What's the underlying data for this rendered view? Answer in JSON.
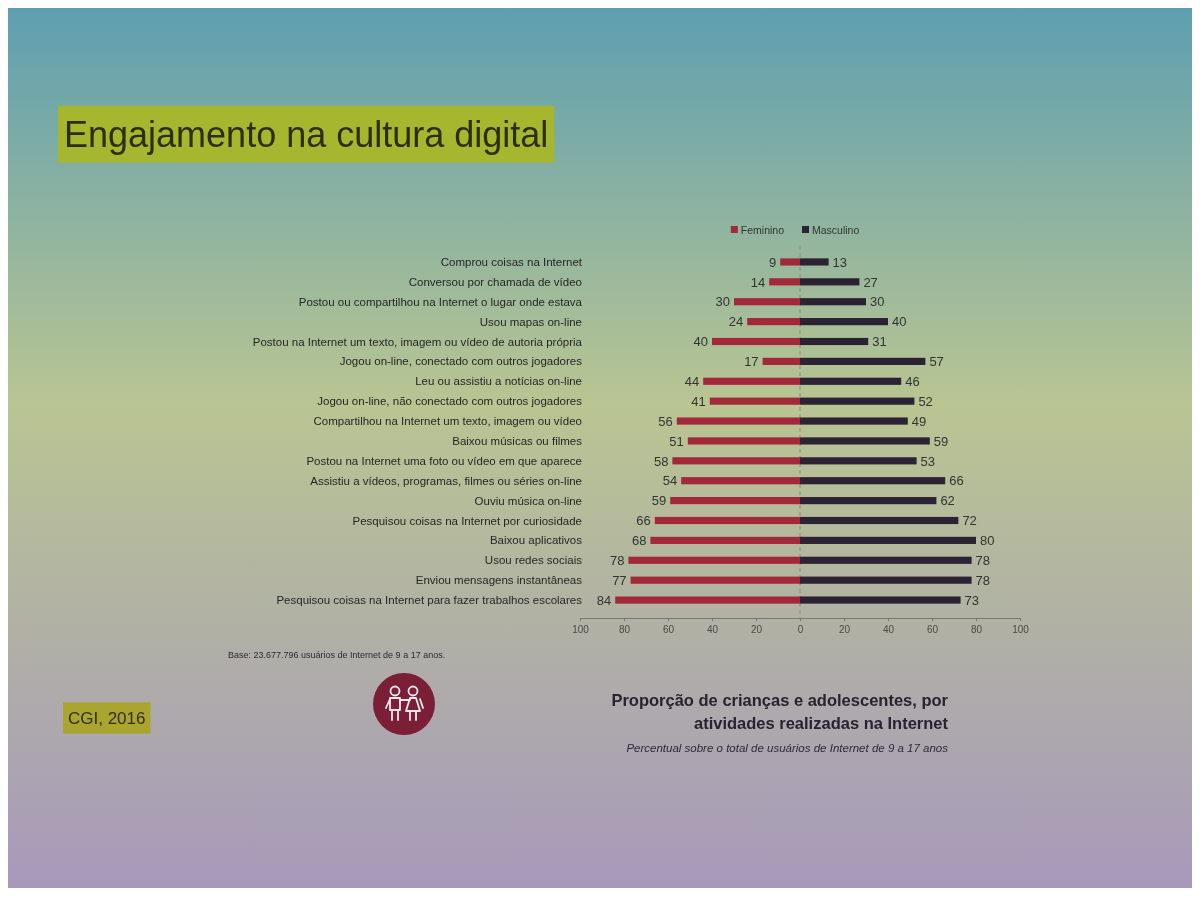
{
  "chart_data": [
    {
      "type": "bar",
      "orientation": "horizontal",
      "title": "Engajamento na cultura digital",
      "subtitle": "Proporção de crianças e adolescentes, por atividades realizadas na Internet",
      "annotations": [
        "Percentual sobre o total de usuários de Internet de 9 a 17 anos",
        "Base: 23.677.796 usuários de Internet de 9 a 17 anos.",
        "CGI, 2016"
      ],
      "categories": [
        "Comprou coisas na Internet",
        "Conversou por chamada de vídeo",
        "Postou ou compartilhou na Internet o lugar onde estava",
        "Usou mapas on-line",
        "Postou na Internet um texto, imagem ou vídeo de autoria própria",
        "Jogou on-line, conectado com outros jogadores",
        "Leu ou assistiu a notícias on-line",
        "Jogou on-line, não conectado com outros jogadores",
        "Compartilhou na Internet um texto, imagem ou vídeo",
        "Baixou músicas ou filmes",
        "Postou na Internet uma foto ou vídeo em que aparece",
        "Assistiu a vídeos, programas, filmes ou séries on-line",
        "Ouviu música on-line",
        "Pesquisou coisas na Internet por curiosidade",
        "Baixou aplicativos",
        "Usou redes sociais",
        "Enviou mensagens instantâneas",
        "Pesquisou coisas na Internet para fazer trabalhos escolares"
      ],
      "series": [
        {
          "name": "Feminino",
          "color": "#a3293a",
          "values": [
            9,
            14,
            30,
            24,
            40,
            17,
            44,
            41,
            56,
            51,
            58,
            54,
            59,
            66,
            68,
            78,
            77,
            84
          ]
        }
      ],
      "data_labels": true,
      "xlim": [
        100,
        0
      ],
      "xticks": [
        100,
        80,
        60,
        40,
        20
      ],
      "ref_lines": [
        {
          "axis": "x",
          "value": 0,
          "color": "#8a8a8a",
          "line_style": "dashed"
        }
      ],
      "legend": "top right"
    },
    {
      "type": "bar",
      "orientation": "horizontal",
      "categories": [
        null,
        null,
        null,
        null,
        null,
        null,
        null,
        null,
        null,
        null,
        null,
        null,
        null,
        null,
        null,
        null,
        null,
        null
      ],
      "series": [
        {
          "name": "Masculino",
          "color": "#2b2233",
          "values": [
            13,
            27,
            30,
            40,
            31,
            57,
            46,
            52,
            49,
            59,
            53,
            66,
            62,
            72,
            80,
            78,
            78,
            73
          ]
        }
      ],
      "data_labels": true,
      "xlim": [
        0,
        100
      ],
      "xticks": [
        0,
        20,
        40,
        60,
        80,
        100
      ],
      "tick_labels": "x",
      "legend": "top left"
    }
  ]
}
